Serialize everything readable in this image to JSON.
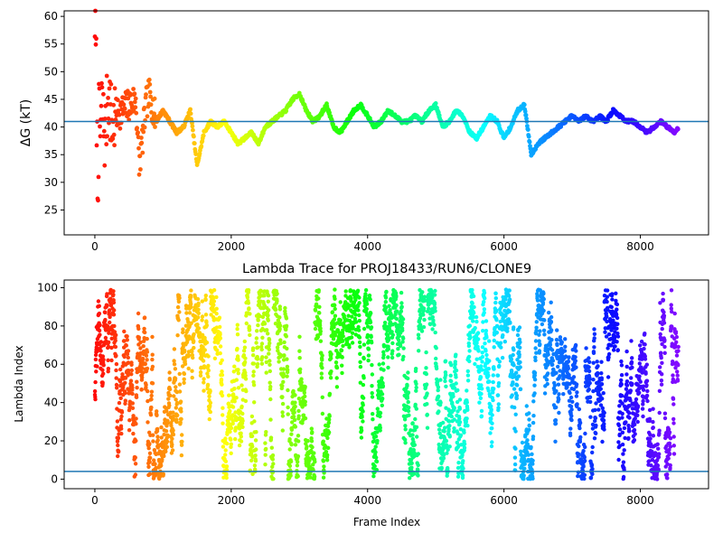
{
  "chart_data": [
    {
      "type": "scatter",
      "title": "",
      "xlabel": "",
      "ylabel": "ΔG (kT)",
      "xlim": [
        -450,
        9000
      ],
      "ylim": [
        20.5,
        61
      ],
      "xticks": [
        0,
        2000,
        4000,
        6000,
        8000
      ],
      "yticks": [
        25,
        30,
        35,
        40,
        45,
        50,
        55,
        60
      ],
      "grid": false,
      "reference_line_y": 41,
      "reference_line_color": "#1f77b4",
      "colormap": "rainbow (red at first frame → violet at last frame)",
      "series": [
        {
          "x": [
            0,
            20,
            40,
            60,
            80,
            100,
            150,
            200,
            250,
            300,
            400,
            500,
            600,
            650,
            700,
            750,
            800,
            900,
            1000,
            1100,
            1200,
            1300,
            1400,
            1450,
            1500,
            1550,
            1600,
            1700,
            1800,
            1900,
            2000,
            2100,
            2200,
            2300,
            2400,
            2500,
            2600,
            2700,
            2800,
            2900,
            3000,
            3100,
            3200,
            3300,
            3400,
            3500,
            3600,
            3700,
            3800,
            3900,
            4000,
            4100,
            4200,
            4300,
            4400,
            4500,
            4600,
            4700,
            4800,
            4900,
            5000,
            5100,
            5200,
            5300,
            5400,
            5500,
            5600,
            5700,
            5800,
            5900,
            6000,
            6100,
            6200,
            6300,
            6400,
            6500,
            6600,
            6700,
            6800,
            6900,
            7000,
            7100,
            7200,
            7300,
            7400,
            7500,
            7600,
            7700,
            7800,
            7900,
            8000,
            8100,
            8200,
            8300,
            8400,
            8500,
            8560
          ],
          "y": [
            60,
            50,
            29,
            41,
            39,
            44,
            38,
            47,
            40,
            42,
            43,
            44,
            45,
            33,
            38,
            44,
            46,
            41,
            43,
            41,
            39,
            40,
            43,
            38,
            33,
            36,
            39,
            41,
            40,
            41,
            39,
            37,
            38,
            39,
            37,
            40,
            41,
            42,
            43,
            45,
            46,
            43,
            41,
            42,
            44,
            40,
            39,
            41,
            43,
            44,
            42,
            40,
            41,
            43,
            42,
            41,
            41,
            42,
            41,
            43,
            44,
            40,
            41,
            43,
            42,
            39,
            38,
            40,
            42,
            41,
            38,
            40,
            43,
            44,
            35,
            37,
            38,
            39,
            40,
            41,
            42,
            41,
            42,
            41,
            42,
            41,
            43,
            42,
            41,
            41,
            40,
            39,
            40,
            41,
            40,
            39,
            40
          ]
        }
      ]
    },
    {
      "type": "scatter",
      "title": "Lambda Trace for PROJ18433/RUN6/CLONE9",
      "xlabel": "Frame Index",
      "ylabel": "Lambda Index",
      "xlim": [
        -450,
        9000
      ],
      "ylim": [
        -5,
        104
      ],
      "xticks": [
        0,
        2000,
        4000,
        6000,
        8000
      ],
      "yticks": [
        0,
        20,
        40,
        60,
        80,
        100
      ],
      "grid": false,
      "reference_line_y": 4,
      "reference_line_color": "#1f77b4",
      "colormap": "rainbow (red at first frame → violet at last frame)",
      "series": [
        {
          "x_range": [
            0,
            8560
          ],
          "y_range": [
            0,
            99
          ],
          "description_points": "dense random-walk scatter of lambda index per frame"
        }
      ]
    }
  ]
}
